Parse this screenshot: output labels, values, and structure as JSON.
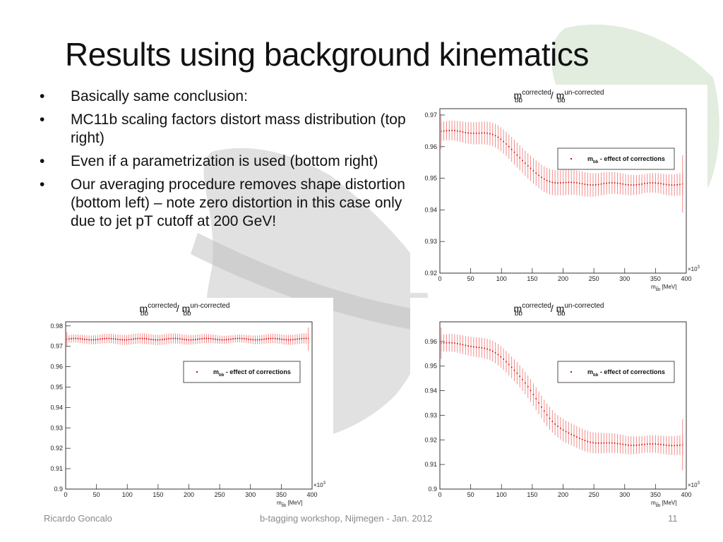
{
  "slide": {
    "title": "Results using background kinematics",
    "bullets": [
      "Basically same conclusion:",
      "MC11b scaling factors distort mass distribution (top right)",
      "Even if a parametrization is used (bottom right)",
      "Our averaging procedure removes shape distortion (bottom left) – note zero distortion in this case only due to jet pT cutoff at 200 GeV!"
    ],
    "bullet_glyph": "•",
    "footer": {
      "left": "Ricardo Goncalo",
      "center": "b-tagging workshop, Nijmegen - Jan. 2012",
      "right": "11"
    }
  },
  "colors": {
    "marker": "#d40000",
    "error_bar": "#f08080",
    "axis": "#333333"
  },
  "chart_data": [
    {
      "id": "top-right",
      "type": "scatter",
      "title_html": "m<sub>bb</sub><sup>corrected</sup> / m<sub>bb</sub><sup>un-corrected</sup>",
      "title_parts": [
        "m",
        "bb",
        "corrected",
        " / m",
        "bb",
        "un-corrected"
      ],
      "xlabel_parts": [
        "m",
        "b̅b",
        " [MeV]"
      ],
      "x_exponent": "×10",
      "x_exponent_power": "3",
      "xlim": [
        0,
        400
      ],
      "ylim": [
        0.92,
        0.972
      ],
      "x_ticks": [
        0,
        50,
        100,
        150,
        200,
        250,
        300,
        350,
        400
      ],
      "y_ticks": [
        0.92,
        0.93,
        0.94,
        0.95,
        0.96,
        0.97
      ],
      "x_tick_labels": [
        "0",
        "50",
        "100",
        "150",
        "200",
        "250",
        "300",
        "350",
        "400"
      ],
      "y_tick_labels": [
        "0.92",
        "0.93",
        "0.94",
        "0.95",
        "0.96",
        "0.97"
      ],
      "legend": {
        "label_parts": [
          "m",
          "bb",
          " - effect of corrections"
        ],
        "position": "top-right"
      },
      "profile": {
        "kind": "sigmoid",
        "plateau_start": 0.9648,
        "plateau_end": 0.9482,
        "center": 130,
        "width": 18,
        "error": 0.0035,
        "x_start": 2,
        "x_end": 394,
        "n_points": 90
      }
    },
    {
      "id": "bottom-left",
      "type": "scatter",
      "title_parts": [
        "m",
        "bb",
        "corrected",
        " / m",
        "bb",
        "un-corrected"
      ],
      "xlabel_parts": [
        "m",
        "b̅b",
        " [MeV]"
      ],
      "x_exponent": "×10",
      "x_exponent_power": "3",
      "xlim": [
        0,
        400
      ],
      "ylim": [
        0.9,
        0.982
      ],
      "x_ticks": [
        0,
        50,
        100,
        150,
        200,
        250,
        300,
        350,
        400
      ],
      "y_ticks": [
        0.9,
        0.91,
        0.92,
        0.93,
        0.94,
        0.95,
        0.96,
        0.97,
        0.98
      ],
      "x_tick_labels": [
        "0",
        "50",
        "100",
        "150",
        "200",
        "250",
        "300",
        "350",
        "400"
      ],
      "y_tick_labels": [
        "0.9",
        "0.91",
        "0.92",
        "0.93",
        "0.94",
        "0.95",
        "0.96",
        "0.97",
        "0.98"
      ],
      "legend": {
        "label_parts": [
          "m",
          "bb",
          " - effect of corrections"
        ],
        "position": "top-right"
      },
      "profile": {
        "kind": "flat",
        "value": 0.9735,
        "error": 0.0022,
        "x_start": 2,
        "x_end": 394,
        "n_points": 110
      }
    },
    {
      "id": "bottom-right",
      "type": "scatter",
      "title_parts": [
        "m",
        "bb",
        "corrected",
        " / m",
        "bb",
        "un-corrected"
      ],
      "xlabel_parts": [
        "m",
        "b̅b",
        " [MeV]"
      ],
      "x_exponent": "×10",
      "x_exponent_power": "3",
      "xlim": [
        0,
        400
      ],
      "ylim": [
        0.9,
        0.968
      ],
      "x_ticks": [
        0,
        50,
        100,
        150,
        200,
        250,
        300,
        350,
        400
      ],
      "y_ticks": [
        0.9,
        0.91,
        0.92,
        0.93,
        0.94,
        0.95,
        0.96
      ],
      "x_tick_labels": [
        "0",
        "50",
        "100",
        "150",
        "200",
        "250",
        "300",
        "350",
        "400"
      ],
      "y_tick_labels": [
        "0.9",
        "0.91",
        "0.92",
        "0.93",
        "0.94",
        "0.95",
        "0.96"
      ],
      "legend": {
        "label_parts": [
          "m",
          "bb",
          " - effect of corrections"
        ],
        "position": "top-right"
      },
      "profile": {
        "kind": "sigmoid",
        "plateau_start": 0.9595,
        "plateau_end": 0.918,
        "center": 150,
        "width": 28,
        "error": 0.004,
        "x_start": 2,
        "x_end": 394,
        "n_points": 90
      }
    }
  ]
}
